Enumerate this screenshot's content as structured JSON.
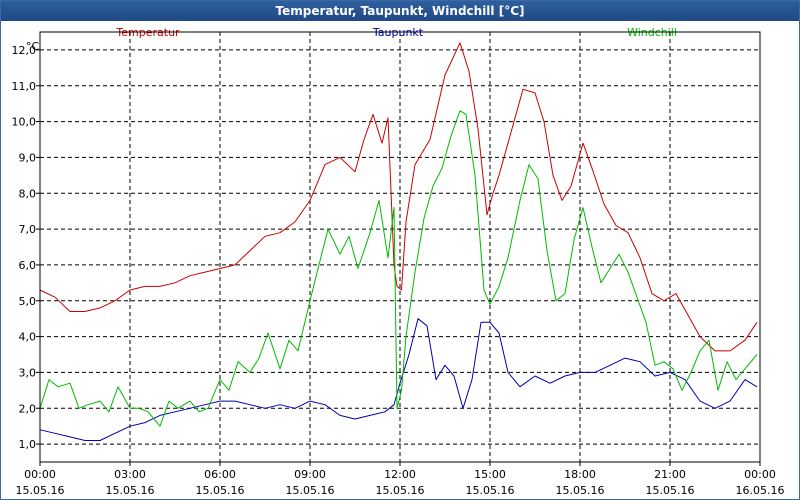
{
  "chart_data": {
    "type": "line",
    "title": "Temperatur, Taupunkt, Windchill [°C]",
    "ylabel": "°C",
    "xlabel": "",
    "ylim": [
      0.5,
      12.5
    ],
    "yticks": [
      1,
      2,
      3,
      4,
      5,
      6,
      7,
      8,
      9,
      10,
      11,
      12
    ],
    "ytick_labels": [
      "1,0",
      "2,0",
      "3,0",
      "4,0",
      "5,0",
      "6,0",
      "7,0",
      "8,0",
      "9,0",
      "10,0",
      "11,0",
      "12,0"
    ],
    "xlim": [
      0,
      24
    ],
    "xticks": [
      {
        "time": "00:00",
        "date": "15.05.16"
      },
      {
        "time": "03:00",
        "date": "15.05.16"
      },
      {
        "time": "06:00",
        "date": "15.05.16"
      },
      {
        "time": "09:00",
        "date": "15.05.16"
      },
      {
        "time": "12:00",
        "date": "15.05.16"
      },
      {
        "time": "15:00",
        "date": "15.05.16"
      },
      {
        "time": "18:00",
        "date": "15.05.16"
      },
      {
        "time": "21:00",
        "date": "15.05.16"
      },
      {
        "time": "00:00",
        "date": "16.05.16"
      }
    ],
    "grid": true,
    "series": [
      {
        "name": "Temperatur",
        "color": "#cc0000",
        "x": [
          0,
          0.5,
          1,
          1.5,
          2,
          2.5,
          3,
          3.5,
          4,
          4.5,
          5,
          5.5,
          6,
          6.5,
          7,
          7.5,
          8,
          8.5,
          9,
          9.5,
          10,
          10.5,
          10.8,
          11.1,
          11.4,
          11.6,
          11.8,
          11.9,
          12.05,
          12.2,
          12.5,
          13,
          13.5,
          14,
          14.3,
          14.6,
          14.9,
          15.1,
          15.3,
          15.7,
          16.1,
          16.5,
          16.8,
          17.1,
          17.4,
          17.7,
          18.1,
          18.4,
          18.8,
          19.2,
          19.6,
          20,
          20.4,
          20.8,
          21.2,
          21.6,
          22,
          22.5,
          23,
          23.5,
          23.9
        ],
        "values": [
          5.3,
          5.1,
          4.7,
          4.7,
          4.8,
          5.0,
          5.3,
          5.4,
          5.4,
          5.5,
          5.7,
          5.8,
          5.9,
          6.0,
          6.4,
          6.8,
          6.9,
          7.2,
          7.8,
          8.8,
          9.0,
          8.6,
          9.5,
          10.2,
          9.4,
          10.1,
          6.0,
          5.4,
          5.3,
          7.2,
          8.8,
          9.5,
          11.3,
          12.2,
          11.4,
          9.8,
          7.4,
          8.0,
          8.5,
          9.7,
          10.9,
          10.8,
          10.0,
          8.5,
          7.8,
          8.2,
          9.4,
          8.7,
          7.7,
          7.1,
          6.9,
          6.2,
          5.2,
          5.0,
          5.2,
          4.6,
          4.0,
          3.6,
          3.6,
          3.9,
          4.4
        ]
      },
      {
        "name": "Taupunkt",
        "color": "#0000aa",
        "x": [
          0,
          0.5,
          1,
          1.5,
          2,
          2.5,
          3,
          3.5,
          4,
          4.5,
          5,
          5.5,
          6,
          6.5,
          7,
          7.5,
          8,
          8.5,
          9,
          9.5,
          10,
          10.5,
          11,
          11.5,
          11.8,
          12,
          12.3,
          12.6,
          12.9,
          13.2,
          13.5,
          13.8,
          14.1,
          14.4,
          14.7,
          15,
          15.3,
          15.6,
          16,
          16.5,
          17,
          17.5,
          18,
          18.5,
          19,
          19.5,
          20,
          20.5,
          21,
          21.5,
          22,
          22.5,
          23,
          23.5,
          23.9
        ],
        "values": [
          1.4,
          1.3,
          1.2,
          1.1,
          1.1,
          1.3,
          1.5,
          1.6,
          1.8,
          1.9,
          2.0,
          2.1,
          2.2,
          2.2,
          2.1,
          2.0,
          2.1,
          2.0,
          2.2,
          2.1,
          1.8,
          1.7,
          1.8,
          1.9,
          2.1,
          2.7,
          3.5,
          4.5,
          4.3,
          2.8,
          3.2,
          2.9,
          2.0,
          2.8,
          4.4,
          4.4,
          4.1,
          3.0,
          2.6,
          2.9,
          2.7,
          2.9,
          3.0,
          3.0,
          3.2,
          3.4,
          3.3,
          2.9,
          3.0,
          2.8,
          2.2,
          2.0,
          2.2,
          2.8,
          2.6
        ]
      },
      {
        "name": "Windchill",
        "color": "#00bb00",
        "x": [
          0,
          0.3,
          0.6,
          1,
          1.3,
          1.6,
          2,
          2.3,
          2.6,
          3,
          3.3,
          3.6,
          4,
          4.3,
          4.6,
          5,
          5.3,
          5.6,
          6,
          6.3,
          6.6,
          7,
          7.3,
          7.6,
          8,
          8.3,
          8.6,
          9,
          9.3,
          9.6,
          10,
          10.3,
          10.6,
          11,
          11.3,
          11.6,
          11.8,
          11.9,
          12.05,
          12.2,
          12.5,
          12.8,
          13.1,
          13.4,
          13.7,
          14,
          14.2,
          14.5,
          14.8,
          15,
          15.3,
          15.6,
          16,
          16.3,
          16.6,
          16.9,
          17.2,
          17.5,
          17.8,
          18.1,
          18.4,
          18.7,
          19,
          19.3,
          19.6,
          19.9,
          20.2,
          20.5,
          20.8,
          21.1,
          21.4,
          21.7,
          22,
          22.3,
          22.6,
          22.9,
          23.2,
          23.5,
          23.9
        ],
        "values": [
          2.0,
          2.8,
          2.6,
          2.7,
          2.0,
          2.1,
          2.2,
          1.9,
          2.6,
          2.0,
          2.0,
          1.9,
          1.5,
          2.2,
          2.0,
          2.2,
          1.9,
          2.0,
          2.8,
          2.5,
          3.3,
          3.0,
          3.4,
          4.1,
          3.1,
          3.9,
          3.6,
          5.0,
          6.0,
          7.0,
          6.3,
          6.8,
          5.9,
          6.9,
          7.8,
          6.2,
          7.6,
          2.0,
          2.5,
          4.0,
          5.8,
          7.3,
          8.2,
          8.7,
          9.6,
          10.3,
          10.2,
          8.5,
          5.3,
          4.9,
          5.4,
          6.2,
          7.8,
          8.8,
          8.4,
          6.4,
          5.0,
          5.2,
          6.7,
          7.6,
          6.5,
          5.5,
          5.9,
          6.3,
          5.8,
          5.1,
          4.4,
          3.2,
          3.3,
          3.1,
          2.5,
          3.0,
          3.6,
          3.9,
          2.5,
          3.3,
          2.8,
          3.1,
          3.5
        ]
      }
    ]
  }
}
